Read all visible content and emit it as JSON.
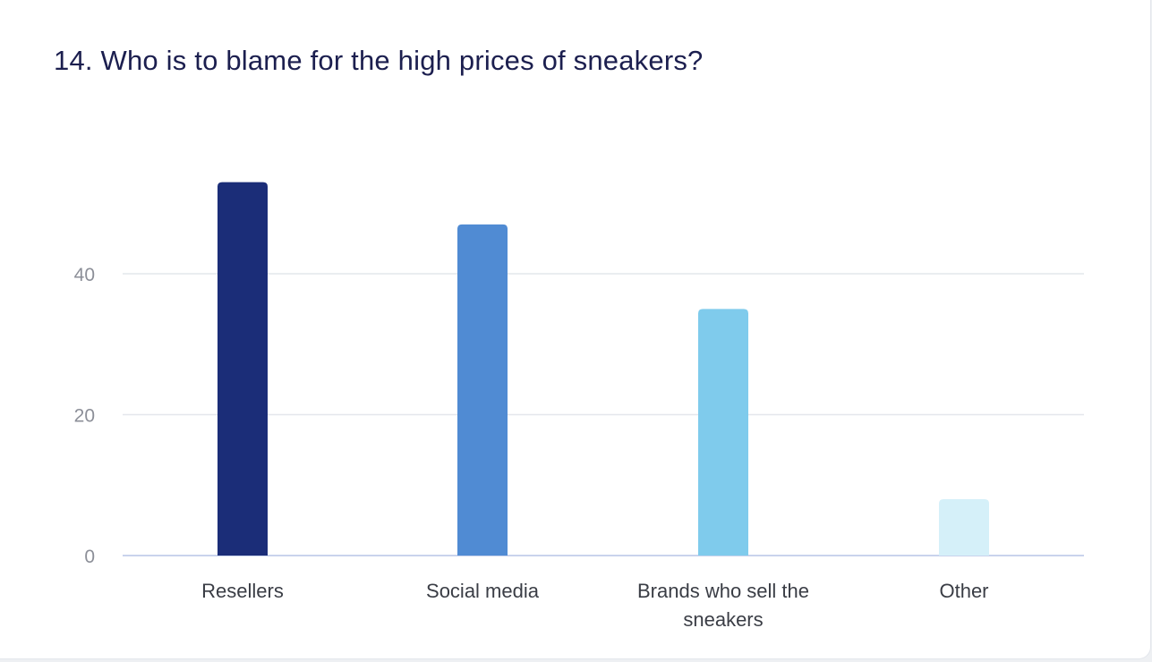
{
  "chart_data": {
    "type": "bar",
    "title": "14. Who is to blame for the high prices of sneakers?",
    "xlabel": "",
    "ylabel": "",
    "categories": [
      [
        "Resellers"
      ],
      [
        "Social media"
      ],
      [
        "Brands who sell the",
        "sneakers"
      ],
      [
        "Other"
      ]
    ],
    "values": [
      53,
      47,
      35,
      8
    ],
    "colors": [
      "#1b2d78",
      "#508bd3",
      "#7fcbec",
      "#d5f0f9"
    ],
    "yticks": [
      0,
      20,
      40
    ],
    "ylim": [
      0,
      60
    ],
    "grid": true,
    "legend": "none"
  }
}
